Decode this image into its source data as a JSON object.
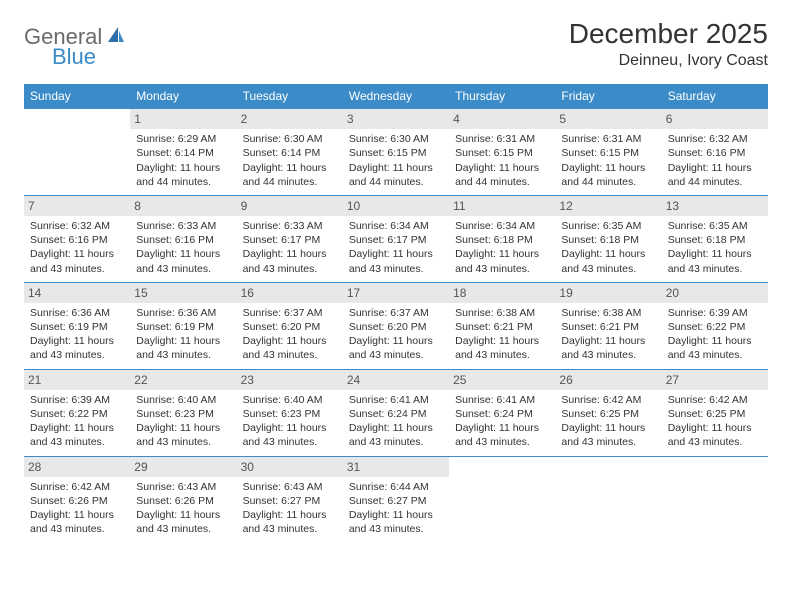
{
  "logo": {
    "text1": "General",
    "text2": "Blue"
  },
  "title": "December 2025",
  "location": "Deinneu, Ivory Coast",
  "colors": {
    "header_bg": "#3b8bc8",
    "header_fg": "#ffffff",
    "daynum_bg": "#e8e8e8",
    "daynum_fg": "#555555",
    "border": "#3b8bc8",
    "text": "#333333",
    "logo_gray": "#6b6b6b",
    "logo_blue": "#3b8bc8"
  },
  "day_headers": [
    "Sunday",
    "Monday",
    "Tuesday",
    "Wednesday",
    "Thursday",
    "Friday",
    "Saturday"
  ],
  "weeks": [
    [
      {
        "empty": true
      },
      {
        "day": "1",
        "sunrise": "Sunrise: 6:29 AM",
        "sunset": "Sunset: 6:14 PM",
        "daylight1": "Daylight: 11 hours",
        "daylight2": "and 44 minutes."
      },
      {
        "day": "2",
        "sunrise": "Sunrise: 6:30 AM",
        "sunset": "Sunset: 6:14 PM",
        "daylight1": "Daylight: 11 hours",
        "daylight2": "and 44 minutes."
      },
      {
        "day": "3",
        "sunrise": "Sunrise: 6:30 AM",
        "sunset": "Sunset: 6:15 PM",
        "daylight1": "Daylight: 11 hours",
        "daylight2": "and 44 minutes."
      },
      {
        "day": "4",
        "sunrise": "Sunrise: 6:31 AM",
        "sunset": "Sunset: 6:15 PM",
        "daylight1": "Daylight: 11 hours",
        "daylight2": "and 44 minutes."
      },
      {
        "day": "5",
        "sunrise": "Sunrise: 6:31 AM",
        "sunset": "Sunset: 6:15 PM",
        "daylight1": "Daylight: 11 hours",
        "daylight2": "and 44 minutes."
      },
      {
        "day": "6",
        "sunrise": "Sunrise: 6:32 AM",
        "sunset": "Sunset: 6:16 PM",
        "daylight1": "Daylight: 11 hours",
        "daylight2": "and 44 minutes."
      }
    ],
    [
      {
        "day": "7",
        "sunrise": "Sunrise: 6:32 AM",
        "sunset": "Sunset: 6:16 PM",
        "daylight1": "Daylight: 11 hours",
        "daylight2": "and 43 minutes."
      },
      {
        "day": "8",
        "sunrise": "Sunrise: 6:33 AM",
        "sunset": "Sunset: 6:16 PM",
        "daylight1": "Daylight: 11 hours",
        "daylight2": "and 43 minutes."
      },
      {
        "day": "9",
        "sunrise": "Sunrise: 6:33 AM",
        "sunset": "Sunset: 6:17 PM",
        "daylight1": "Daylight: 11 hours",
        "daylight2": "and 43 minutes."
      },
      {
        "day": "10",
        "sunrise": "Sunrise: 6:34 AM",
        "sunset": "Sunset: 6:17 PM",
        "daylight1": "Daylight: 11 hours",
        "daylight2": "and 43 minutes."
      },
      {
        "day": "11",
        "sunrise": "Sunrise: 6:34 AM",
        "sunset": "Sunset: 6:18 PM",
        "daylight1": "Daylight: 11 hours",
        "daylight2": "and 43 minutes."
      },
      {
        "day": "12",
        "sunrise": "Sunrise: 6:35 AM",
        "sunset": "Sunset: 6:18 PM",
        "daylight1": "Daylight: 11 hours",
        "daylight2": "and 43 minutes."
      },
      {
        "day": "13",
        "sunrise": "Sunrise: 6:35 AM",
        "sunset": "Sunset: 6:18 PM",
        "daylight1": "Daylight: 11 hours",
        "daylight2": "and 43 minutes."
      }
    ],
    [
      {
        "day": "14",
        "sunrise": "Sunrise: 6:36 AM",
        "sunset": "Sunset: 6:19 PM",
        "daylight1": "Daylight: 11 hours",
        "daylight2": "and 43 minutes."
      },
      {
        "day": "15",
        "sunrise": "Sunrise: 6:36 AM",
        "sunset": "Sunset: 6:19 PM",
        "daylight1": "Daylight: 11 hours",
        "daylight2": "and 43 minutes."
      },
      {
        "day": "16",
        "sunrise": "Sunrise: 6:37 AM",
        "sunset": "Sunset: 6:20 PM",
        "daylight1": "Daylight: 11 hours",
        "daylight2": "and 43 minutes."
      },
      {
        "day": "17",
        "sunrise": "Sunrise: 6:37 AM",
        "sunset": "Sunset: 6:20 PM",
        "daylight1": "Daylight: 11 hours",
        "daylight2": "and 43 minutes."
      },
      {
        "day": "18",
        "sunrise": "Sunrise: 6:38 AM",
        "sunset": "Sunset: 6:21 PM",
        "daylight1": "Daylight: 11 hours",
        "daylight2": "and 43 minutes."
      },
      {
        "day": "19",
        "sunrise": "Sunrise: 6:38 AM",
        "sunset": "Sunset: 6:21 PM",
        "daylight1": "Daylight: 11 hours",
        "daylight2": "and 43 minutes."
      },
      {
        "day": "20",
        "sunrise": "Sunrise: 6:39 AM",
        "sunset": "Sunset: 6:22 PM",
        "daylight1": "Daylight: 11 hours",
        "daylight2": "and 43 minutes."
      }
    ],
    [
      {
        "day": "21",
        "sunrise": "Sunrise: 6:39 AM",
        "sunset": "Sunset: 6:22 PM",
        "daylight1": "Daylight: 11 hours",
        "daylight2": "and 43 minutes."
      },
      {
        "day": "22",
        "sunrise": "Sunrise: 6:40 AM",
        "sunset": "Sunset: 6:23 PM",
        "daylight1": "Daylight: 11 hours",
        "daylight2": "and 43 minutes."
      },
      {
        "day": "23",
        "sunrise": "Sunrise: 6:40 AM",
        "sunset": "Sunset: 6:23 PM",
        "daylight1": "Daylight: 11 hours",
        "daylight2": "and 43 minutes."
      },
      {
        "day": "24",
        "sunrise": "Sunrise: 6:41 AM",
        "sunset": "Sunset: 6:24 PM",
        "daylight1": "Daylight: 11 hours",
        "daylight2": "and 43 minutes."
      },
      {
        "day": "25",
        "sunrise": "Sunrise: 6:41 AM",
        "sunset": "Sunset: 6:24 PM",
        "daylight1": "Daylight: 11 hours",
        "daylight2": "and 43 minutes."
      },
      {
        "day": "26",
        "sunrise": "Sunrise: 6:42 AM",
        "sunset": "Sunset: 6:25 PM",
        "daylight1": "Daylight: 11 hours",
        "daylight2": "and 43 minutes."
      },
      {
        "day": "27",
        "sunrise": "Sunrise: 6:42 AM",
        "sunset": "Sunset: 6:25 PM",
        "daylight1": "Daylight: 11 hours",
        "daylight2": "and 43 minutes."
      }
    ],
    [
      {
        "day": "28",
        "sunrise": "Sunrise: 6:42 AM",
        "sunset": "Sunset: 6:26 PM",
        "daylight1": "Daylight: 11 hours",
        "daylight2": "and 43 minutes."
      },
      {
        "day": "29",
        "sunrise": "Sunrise: 6:43 AM",
        "sunset": "Sunset: 6:26 PM",
        "daylight1": "Daylight: 11 hours",
        "daylight2": "and 43 minutes."
      },
      {
        "day": "30",
        "sunrise": "Sunrise: 6:43 AM",
        "sunset": "Sunset: 6:27 PM",
        "daylight1": "Daylight: 11 hours",
        "daylight2": "and 43 minutes."
      },
      {
        "day": "31",
        "sunrise": "Sunrise: 6:44 AM",
        "sunset": "Sunset: 6:27 PM",
        "daylight1": "Daylight: 11 hours",
        "daylight2": "and 43 minutes."
      },
      {
        "empty": true
      },
      {
        "empty": true
      },
      {
        "empty": true
      }
    ]
  ]
}
